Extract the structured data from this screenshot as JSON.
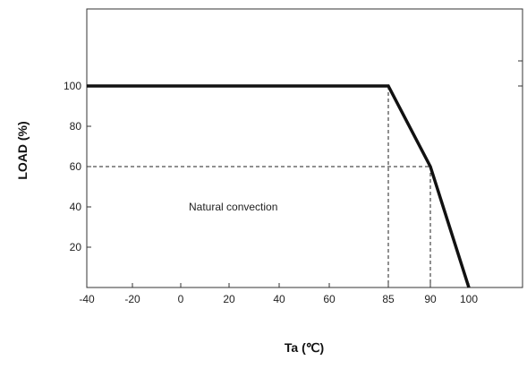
{
  "chart_data": {
    "type": "line",
    "title": "",
    "xlabel": "Ta (℃)",
    "ylabel": "LOAD (%)",
    "xlim": [
      -40,
      115
    ],
    "ylim": [
      0,
      125
    ],
    "x_ticks": [
      -40,
      -20,
      0,
      20,
      40,
      60,
      85,
      90,
      100
    ],
    "y_ticks": [
      20,
      40,
      60,
      80,
      100
    ],
    "grid": false,
    "series": [
      {
        "x": [
          -40,
          85,
          90,
          100
        ],
        "y": [
          100,
          100,
          60,
          0
        ]
      }
    ],
    "guide_lines": [
      {
        "x": 85,
        "y": 100
      },
      {
        "x": 90,
        "y": 60
      }
    ],
    "annotations": [
      {
        "text": "Natural convection",
        "x": 40,
        "y": 40
      }
    ],
    "colors": {
      "line": "#111111",
      "axis": "#333333",
      "guide": "#222222"
    }
  }
}
